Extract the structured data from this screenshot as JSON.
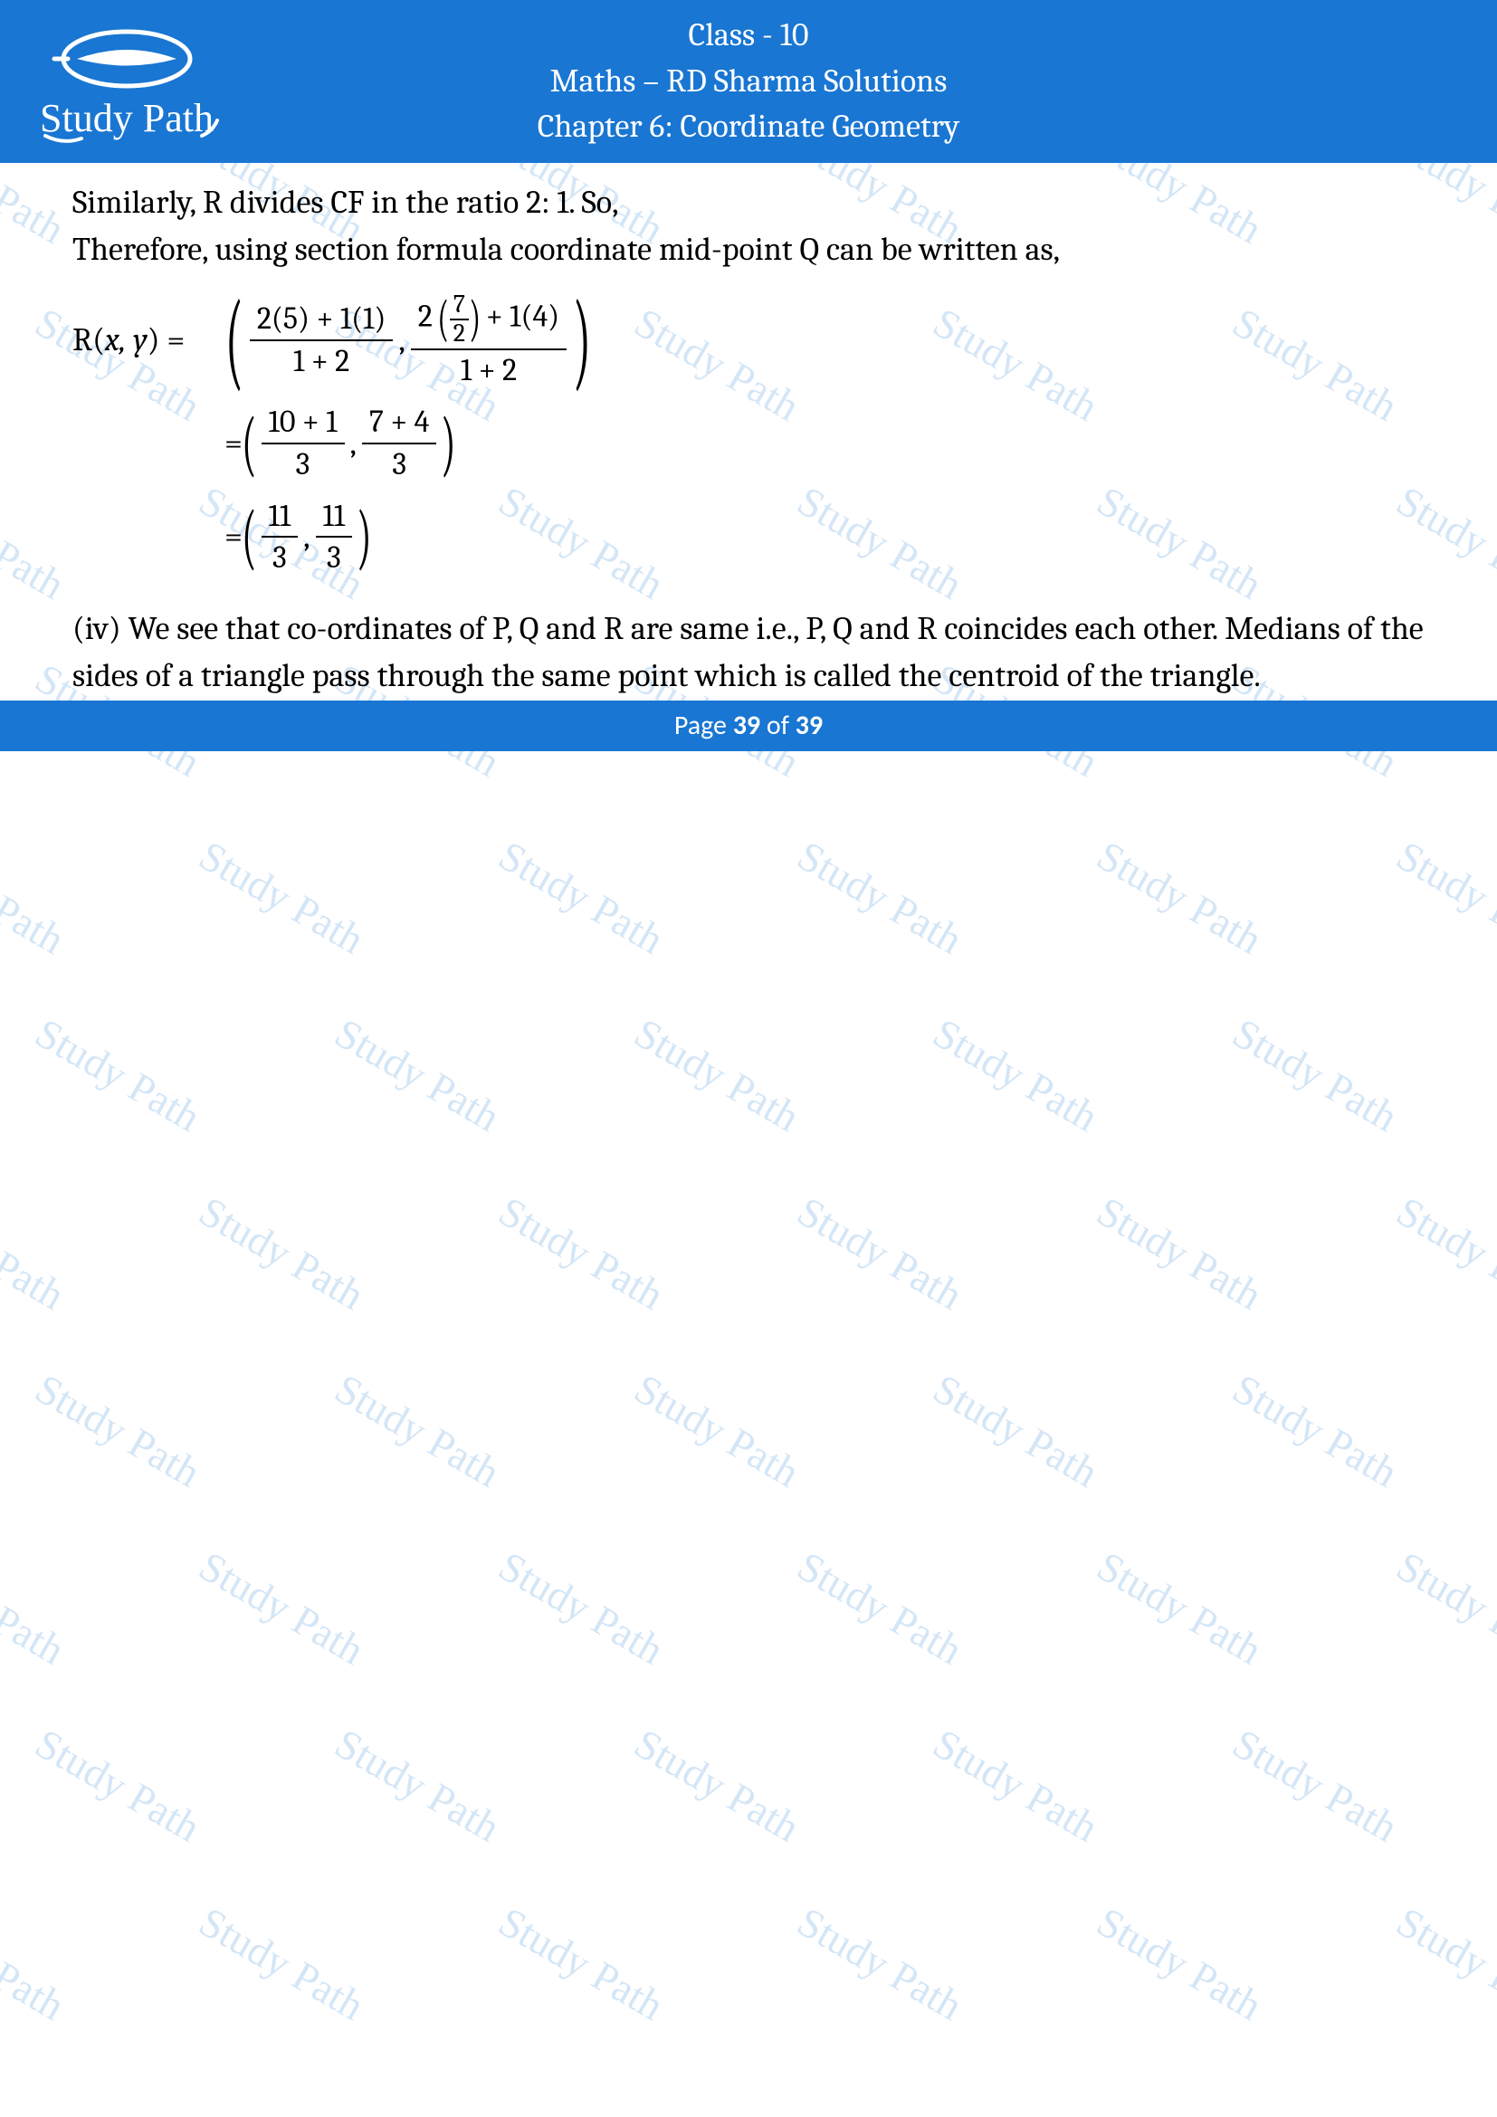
{
  "header": {
    "class_line": "Class - 10",
    "subject_line": "Maths – RD Sharma Solutions",
    "chapter_line": "Chapter 6: Coordinate Geometry",
    "logo_text": "Study Path",
    "bg_color": "#1976d2",
    "text_color": "#ffffff"
  },
  "body": {
    "line1": "Similarly, R divides CF in the ratio 2: 1. So,",
    "line2": "Therefore, using section formula coordinate mid-point Q can be written as,",
    "eq1": {
      "lhs_R": "R(",
      "lhs_xy": "x, y",
      "lhs_close": ") =",
      "x_num": "2(5) + 1(1)",
      "x_den": "1 + 2",
      "y_num_prefix": "2 ",
      "y_inner_num": "7",
      "y_inner_den": "2",
      "y_num_suffix": " + 1(4)",
      "y_den": "1 + 2"
    },
    "eq2": {
      "eq_sign": "=",
      "x_num": "10 + 1",
      "x_den": "3",
      "y_num": "7 + 4",
      "y_den": "3"
    },
    "eq3": {
      "eq_sign": "=",
      "x_num": "11",
      "x_den": "3",
      "y_num": "11",
      "y_den": "3"
    },
    "para_iv": "(iv) We see that co-ordinates of P, Q and R are same i.e., P, Q and R coincides each other. Medians of the sides of a triangle pass through the same point which is called the centroid of the triangle."
  },
  "watermark": {
    "text": "Study Path",
    "color": "#87b8e8",
    "opacity": 0.35,
    "angle_deg": 30
  },
  "footer": {
    "prefix": "Page ",
    "current": "39",
    "mid": " of ",
    "total": "39",
    "bg_color": "#1976d2"
  }
}
